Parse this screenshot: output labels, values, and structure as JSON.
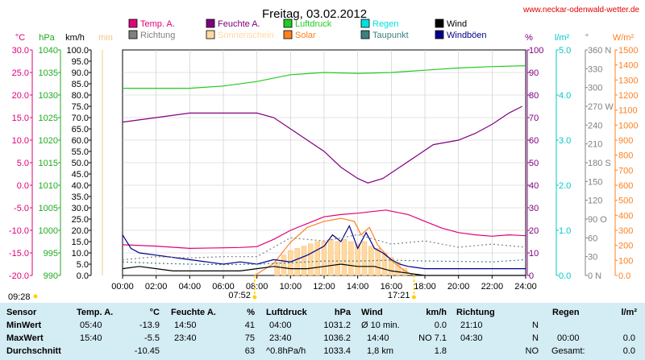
{
  "title": "Freitag, 03.02.2012",
  "website": "www.neckar-odenwald-wetter.de",
  "legend": [
    {
      "label": "Temp. A.",
      "color": "#e0007a"
    },
    {
      "label": "Feuchte A.",
      "color": "#800080"
    },
    {
      "label": "Luftdruck",
      "color": "#22cc22"
    },
    {
      "label": "Regen",
      "color": "#00e0e0"
    },
    {
      "label": "Wind",
      "color": "#000000"
    },
    {
      "label": "Richtung",
      "color": "#808080"
    },
    {
      "label": "Sonnenschein",
      "color": "#ffd9a0"
    },
    {
      "label": "Solar",
      "color": "#ff8020"
    },
    {
      "label": "Taupunkt",
      "color": "#3c8080"
    },
    {
      "label": "Windböen",
      "color": "#00008b"
    }
  ],
  "axis_units": {
    "temp": "°C",
    "hpa": "hPa",
    "kmh": "km/h",
    "min": "min",
    "pct": "%",
    "rain": "l/m²",
    "dir": "°",
    "solar": "W/m²"
  },
  "chart_data": {
    "type": "line",
    "x_ticks": [
      "00:00",
      "02:00",
      "04:00",
      "06:00",
      "08:00",
      "10:00",
      "12:00",
      "14:00",
      "16:00",
      "18:00",
      "20:00",
      "22:00",
      "24:00"
    ],
    "axes": {
      "temp": {
        "range": [
          -20,
          30
        ],
        "ticks": [
          "30.0",
          "25.0",
          "20.0",
          "15.0",
          "10.0",
          "5.0",
          "0.0",
          "-5.0",
          "-10.0",
          "-15.0",
          "-20.0"
        ]
      },
      "hpa": {
        "range": [
          990,
          1040
        ],
        "ticks": [
          "1040",
          "1035",
          "1030",
          "1025",
          "1020",
          "1015",
          "1010",
          "1005",
          "1000",
          "995",
          "990"
        ]
      },
      "kmh": {
        "range": [
          0,
          100
        ],
        "ticks": [
          "100.0",
          "95.0",
          "90.0",
          "85.0",
          "80.0",
          "75.0",
          "70.0",
          "65.0",
          "60.0",
          "55.0",
          "50.0",
          "45.0",
          "40.0",
          "35.0",
          "30.0",
          "25.0",
          "20.0",
          "15.0",
          "10.0",
          "5.0",
          "0.0"
        ]
      },
      "minutes": {
        "range": [
          0,
          100
        ]
      },
      "pct": {
        "range": [
          0,
          100
        ],
        "ticks": [
          "100",
          "90",
          "80",
          "70",
          "60",
          "50",
          "40",
          "30",
          "20",
          "10",
          "0"
        ]
      },
      "rain": {
        "range": [
          0,
          5
        ],
        "ticks": [
          "5.0",
          "4.0",
          "3.0",
          "2.0",
          "1.0",
          "0.0"
        ]
      },
      "dir": {
        "range": [
          0,
          360
        ],
        "ticks": [
          "360 N",
          "330",
          "300",
          "270 W",
          "240",
          "210",
          "180 S",
          "150",
          "120",
          "90 O",
          "60",
          "30",
          "0 N"
        ]
      },
      "solar": {
        "range": [
          0,
          1500
        ],
        "ticks": [
          "1500",
          "1400",
          "1300",
          "1200",
          "1100",
          "1000",
          "900",
          "800",
          "700",
          "600",
          "500",
          "400",
          "300",
          "200",
          "100",
          "0.0"
        ]
      }
    },
    "series": [
      {
        "name": "Luftdruck",
        "axis": "hpa",
        "color": "#22cc22",
        "points": [
          [
            0,
            1031.5
          ],
          [
            2,
            1031.5
          ],
          [
            4,
            1031.5
          ],
          [
            6,
            1032
          ],
          [
            8,
            1033
          ],
          [
            10,
            1034.5
          ],
          [
            12,
            1035
          ],
          [
            14,
            1034.8
          ],
          [
            16,
            1035
          ],
          [
            18,
            1035.5
          ],
          [
            20,
            1036
          ],
          [
            22,
            1036.3
          ],
          [
            24,
            1036.5
          ]
        ]
      },
      {
        "name": "Feuchte A.",
        "axis": "pct",
        "color": "#800080",
        "points": [
          [
            0,
            68
          ],
          [
            2,
            70
          ],
          [
            4,
            72
          ],
          [
            6,
            72
          ],
          [
            8,
            72
          ],
          [
            9,
            70
          ],
          [
            10,
            65
          ],
          [
            11,
            60
          ],
          [
            12,
            55
          ],
          [
            13,
            48
          ],
          [
            14,
            43
          ],
          [
            14.6,
            41
          ],
          [
            15.5,
            43
          ],
          [
            16.5,
            48
          ],
          [
            17.5,
            53
          ],
          [
            18.5,
            58
          ],
          [
            20,
            60
          ],
          [
            21,
            63
          ],
          [
            22,
            67
          ],
          [
            23,
            72
          ],
          [
            23.8,
            75
          ]
        ]
      },
      {
        "name": "Temp. A.",
        "axis": "temp",
        "color": "#e0007a",
        "points": [
          [
            0,
            -13.2
          ],
          [
            2,
            -13.5
          ],
          [
            4,
            -14
          ],
          [
            5.67,
            -13.9
          ],
          [
            7,
            -13.8
          ],
          [
            8,
            -13.6
          ],
          [
            9,
            -12
          ],
          [
            10,
            -10
          ],
          [
            11,
            -8.5
          ],
          [
            12,
            -7
          ],
          [
            13,
            -6.5
          ],
          [
            14,
            -6.2
          ],
          [
            15.67,
            -5.5
          ],
          [
            17,
            -6.5
          ],
          [
            18,
            -8
          ],
          [
            19,
            -9.5
          ],
          [
            20,
            -10.5
          ],
          [
            21,
            -11
          ],
          [
            22,
            -11.3
          ],
          [
            23,
            -11
          ],
          [
            24,
            -11.2
          ]
        ]
      },
      {
        "name": "Solar",
        "axis": "solar",
        "color": "#ff8020",
        "points": [
          [
            7.87,
            0
          ],
          [
            9,
            80
          ],
          [
            10,
            220
          ],
          [
            11,
            320
          ],
          [
            12,
            360
          ],
          [
            13,
            380
          ],
          [
            13.8,
            360
          ],
          [
            14.2,
            270
          ],
          [
            14.7,
            320
          ],
          [
            15.2,
            200
          ],
          [
            16,
            100
          ],
          [
            16.8,
            30
          ],
          [
            17.35,
            0
          ]
        ]
      },
      {
        "name": "Windböen",
        "axis": "kmh",
        "color": "#00008b",
        "points": [
          [
            0,
            18
          ],
          [
            0.5,
            12
          ],
          [
            1,
            10
          ],
          [
            2,
            9
          ],
          [
            3,
            8
          ],
          [
            4,
            7
          ],
          [
            5,
            6
          ],
          [
            6,
            5
          ],
          [
            7,
            6
          ],
          [
            8,
            5
          ],
          [
            9,
            7
          ],
          [
            10,
            6
          ],
          [
            11,
            9
          ],
          [
            12,
            13
          ],
          [
            12.5,
            18
          ],
          [
            13,
            15
          ],
          [
            13.5,
            22
          ],
          [
            14,
            12
          ],
          [
            14.5,
            19
          ],
          [
            15,
            12
          ],
          [
            15.5,
            10
          ],
          [
            16,
            7
          ],
          [
            16.5,
            5
          ],
          [
            17,
            4
          ],
          [
            18,
            3
          ],
          [
            20,
            3
          ],
          [
            22,
            3
          ],
          [
            24,
            3
          ]
        ]
      },
      {
        "name": "Wind",
        "axis": "kmh",
        "color": "#000000",
        "points": [
          [
            0,
            3
          ],
          [
            1,
            4
          ],
          [
            2,
            3
          ],
          [
            3,
            2
          ],
          [
            4,
            2
          ],
          [
            5,
            2
          ],
          [
            6,
            2
          ],
          [
            7,
            2
          ],
          [
            8,
            3
          ],
          [
            9,
            4
          ],
          [
            10,
            3
          ],
          [
            11,
            3
          ],
          [
            12,
            4
          ],
          [
            13,
            5
          ],
          [
            14,
            4
          ],
          [
            15,
            4
          ],
          [
            16,
            2
          ],
          [
            17,
            1
          ],
          [
            18,
            0
          ],
          [
            24,
            0
          ]
        ]
      },
      {
        "name": "Taupunkt",
        "axis": "temp",
        "color": "#3c8080",
        "points": [
          [
            0,
            -17
          ],
          [
            2,
            -17.3
          ],
          [
            4,
            -17.5
          ],
          [
            6,
            -17.6
          ],
          [
            8,
            -17.5
          ],
          [
            10,
            -17.2
          ],
          [
            12,
            -16.8
          ],
          [
            14,
            -16.8
          ],
          [
            16,
            -16.6
          ],
          [
            18,
            -16.8
          ],
          [
            20,
            -16.9
          ],
          [
            22,
            -17
          ],
          [
            24,
            -16.5
          ]
        ]
      },
      {
        "name": "Richtung",
        "axis": "dir",
        "color": "#808080",
        "points": [
          [
            0,
            25
          ],
          [
            2,
            30
          ],
          [
            4,
            28
          ],
          [
            6,
            30
          ],
          [
            8,
            30
          ],
          [
            10,
            60
          ],
          [
            12,
            55
          ],
          [
            14,
            65
          ],
          [
            16,
            50
          ],
          [
            18,
            55
          ],
          [
            20,
            45
          ],
          [
            22,
            50
          ],
          [
            24,
            45
          ]
        ]
      }
    ],
    "sunshine": {
      "axis": "minutes",
      "color": "#ffd9a0",
      "bars": [
        [
          9.2,
          6
        ],
        [
          9.6,
          9
        ],
        [
          10,
          11
        ],
        [
          10.4,
          12
        ],
        [
          10.8,
          13
        ],
        [
          11.2,
          14
        ],
        [
          11.6,
          15
        ],
        [
          12,
          15
        ],
        [
          12.4,
          16
        ],
        [
          12.8,
          15
        ],
        [
          13.2,
          16
        ],
        [
          13.6,
          15
        ],
        [
          14,
          14
        ],
        [
          14.4,
          15
        ],
        [
          14.8,
          13
        ],
        [
          15.2,
          12
        ],
        [
          15.6,
          10
        ],
        [
          16,
          8
        ],
        [
          16.4,
          6
        ],
        [
          16.8,
          3
        ]
      ]
    },
    "sunrise": "07:52",
    "sunset": "17:21",
    "moonrise": "09:28"
  },
  "stats": {
    "headers": {
      "sensor": "Sensor",
      "temp": "Temp. A.",
      "temp_unit": "°C",
      "hum": "Feuchte A.",
      "hum_unit": "%",
      "press": "Luftdruck",
      "press_unit": "hPa",
      "wind": "Wind",
      "wind_unit": "km/h",
      "dir": "Richtung",
      "rain": "Regen",
      "rain_unit": "l/m²"
    },
    "min": {
      "label": "MinWert",
      "temp_time": "05:40",
      "temp_val": "-13.9",
      "hum_time": "14:50",
      "hum_val": "41",
      "press_time": "04:00",
      "press_val": "1031.2",
      "wind_time": "Ø 10 min.",
      "wind_val": "0.0",
      "dir_time": "21:10",
      "dir_val": "N"
    },
    "max": {
      "label": "MaxWert",
      "temp_time": "15:40",
      "temp_val": "-5.5",
      "hum_time": "23:40",
      "hum_val": "75",
      "press_time": "23:40",
      "press_val": "1036.2",
      "wind_time": "14:40",
      "wind_val": "NO 7.1",
      "dir_time": "04:30",
      "dir_val": "N",
      "rain_time": "00:00",
      "rain_val": "0.0"
    },
    "avg": {
      "label": "Durchschnitt",
      "temp_val": "-10.45",
      "hum_val": "63",
      "press_time": "^0.8hPa/h",
      "press_val": "1033.4",
      "wind_time": "1,8 km",
      "wind_val": "1.8",
      "dir_val": "NO",
      "rain_time": "Gesamt:",
      "rain_val": "0.0"
    }
  }
}
